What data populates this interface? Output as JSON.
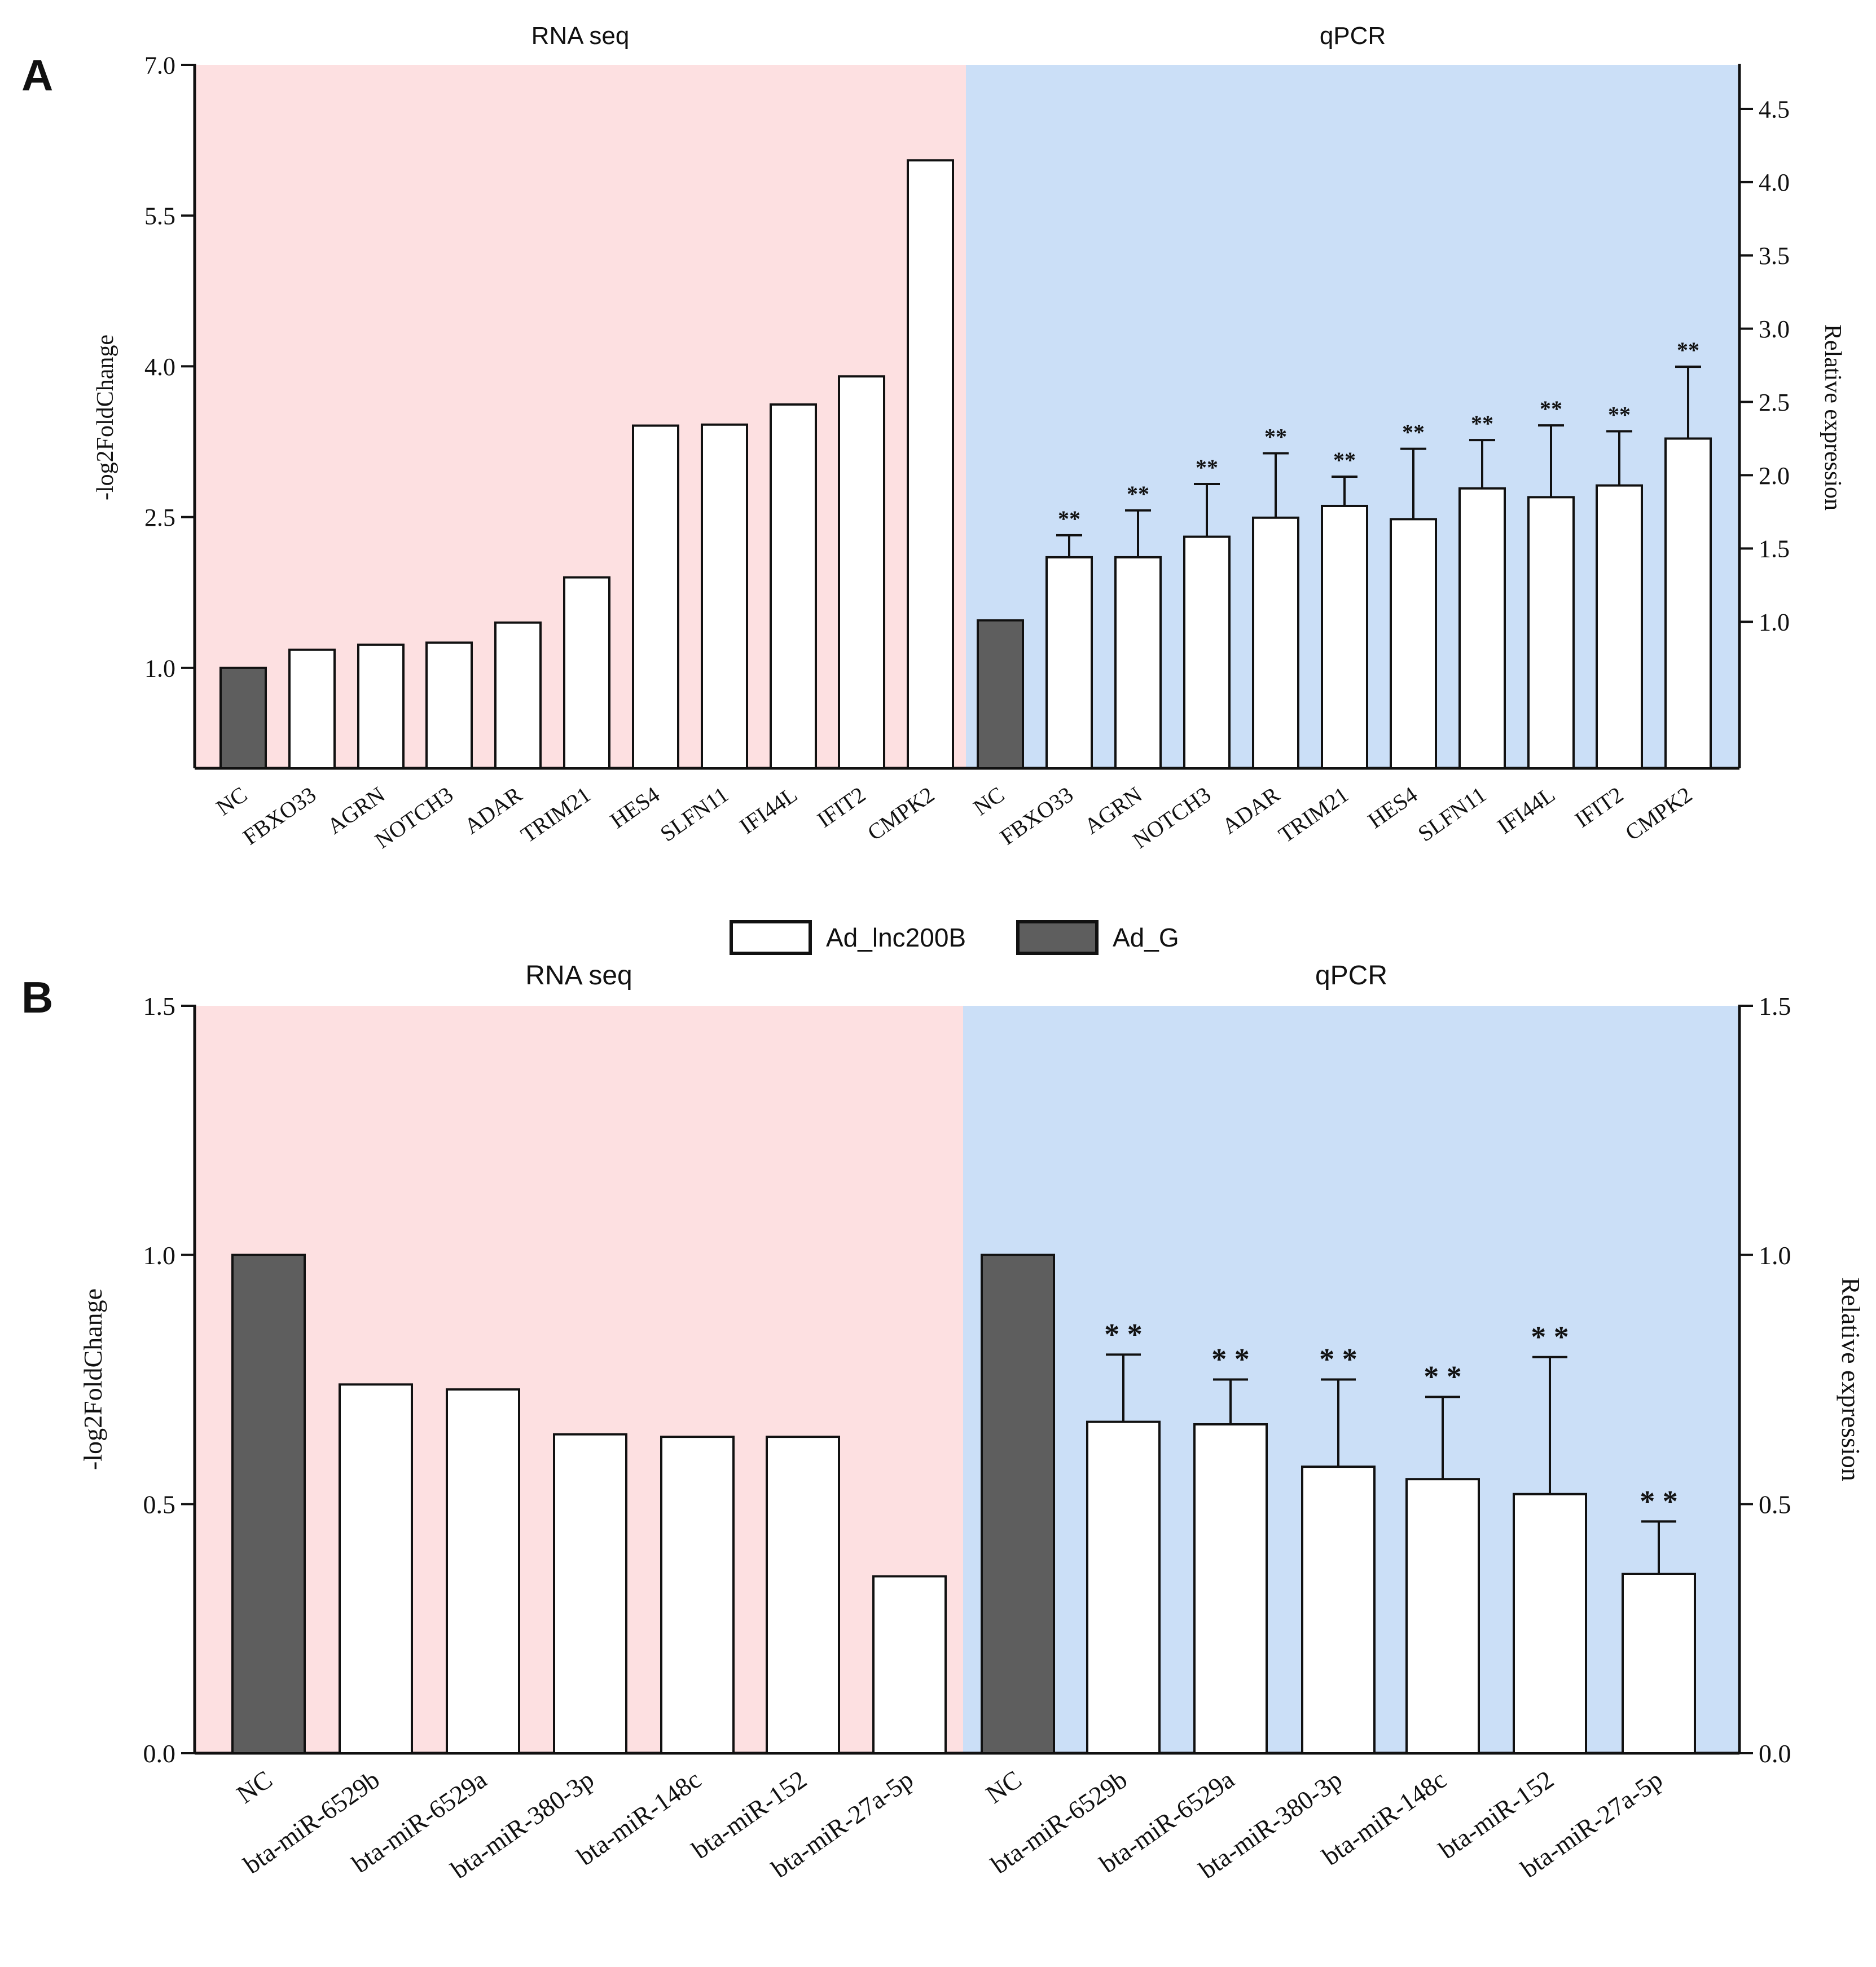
{
  "figure": {
    "legend": {
      "items": [
        {
          "label": "Ad_lnc200B",
          "color": "#ffffff"
        },
        {
          "label": "Ad_G",
          "color": "#7a7a7a"
        }
      ]
    },
    "colors": {
      "rna_bg": "#fde0e1",
      "qpcr_bg": "#cbdff7",
      "control_bar": "#5e5e5e",
      "treated_bar": "#ffffff"
    }
  },
  "chart_data": [
    {
      "panel": "A",
      "type": "bar",
      "sections": [
        {
          "title": "RNA seq",
          "axis": "left",
          "ylabel": "-log2FoldChange",
          "ylim": [
            0,
            7.0
          ],
          "ticks": [
            "1.0",
            "2.5",
            "4.0",
            "5.5",
            "7.0"
          ],
          "categories": [
            "NC",
            "FBXO33",
            "AGRN",
            "NOTCH3",
            "ADAR",
            "TRIM21",
            "HES4",
            "SLFN11",
            "IFI44L",
            "IFIT2",
            "CMPK2"
          ],
          "values": [
            1.0,
            1.18,
            1.23,
            1.25,
            1.45,
            1.9,
            3.41,
            3.42,
            3.62,
            3.9,
            6.05
          ],
          "errors": [],
          "sig": []
        },
        {
          "title": "qPCR",
          "axis": "right",
          "ylabel": "Relative expression",
          "ylim": [
            0,
            4.8
          ],
          "ticks": [
            "1.0",
            "1.5",
            "2.0",
            "2.5",
            "3.0",
            "3.5",
            "4.0",
            "4.5"
          ],
          "categories": [
            "NC",
            "FBXO33",
            "AGRN",
            "NOTCH3",
            "ADAR",
            "TRIM21",
            "HES4",
            "SLFN11",
            "IFI44L",
            "IFIT2",
            "CMPK2"
          ],
          "values": [
            1.01,
            1.44,
            1.44,
            1.58,
            1.71,
            1.79,
            1.7,
            1.91,
            1.85,
            1.93,
            2.25
          ],
          "errors": [
            0,
            0.15,
            0.32,
            0.36,
            0.44,
            0.2,
            0.48,
            0.33,
            0.49,
            0.37,
            0.49
          ],
          "sig": [
            "",
            "**",
            "**",
            "**",
            "**",
            "**",
            "**",
            "**",
            "**",
            "**",
            "**"
          ]
        }
      ]
    },
    {
      "panel": "B",
      "type": "bar",
      "sections": [
        {
          "title": "RNA seq",
          "axis": "left",
          "ylabel": "-log2FoldChange",
          "ylim": [
            0,
            1.5
          ],
          "ticks": [
            "0.0",
            "0.5",
            "1.0",
            "1.5"
          ],
          "categories": [
            "NC",
            "bta-miR-6529b",
            "bta-miR-6529a",
            "bta-miR-380-3p",
            "bta-miR-148c",
            "bta-miR-152",
            "bta-miR-27a-5p"
          ],
          "values": [
            1.0,
            0.74,
            0.73,
            0.64,
            0.635,
            0.635,
            0.355
          ],
          "errors": [],
          "sig": []
        },
        {
          "title": "qPCR",
          "axis": "right",
          "ylabel": "Relative expression",
          "ylim": [
            0,
            1.5
          ],
          "ticks": [
            "0.0",
            "0.5",
            "1.0",
            "1.5"
          ],
          "categories": [
            "NC",
            "bta-miR-6529b",
            "bta-miR-6529a",
            "bta-miR-380-3p",
            "bta-miR-148c",
            "bta-miR-152",
            "bta-miR-27a-5p"
          ],
          "values": [
            1.0,
            0.665,
            0.66,
            0.575,
            0.55,
            0.52,
            0.36
          ],
          "errors": [
            0,
            0.135,
            0.09,
            0.175,
            0.165,
            0.275,
            0.105
          ],
          "sig": [
            "",
            "* *",
            "* *",
            "* *",
            "* *",
            "* *",
            "* *"
          ]
        }
      ]
    }
  ]
}
